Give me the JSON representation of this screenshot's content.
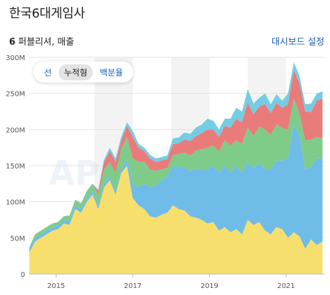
{
  "header": {
    "title": "한국6대게임사"
  },
  "subheader": {
    "count": "6",
    "text": " 퍼블리셔, 매출",
    "dashboard_link": "대시보드 설정"
  },
  "mode_toggle": {
    "options": [
      "선",
      "누적형",
      "백분율"
    ],
    "active_index": 1
  },
  "watermark_text": "APP",
  "chart_data": {
    "type": "area",
    "stacked": true,
    "title": "",
    "xlabel": "",
    "ylabel": "",
    "ylim": [
      0,
      300000000
    ],
    "yticks": [
      0,
      50000000,
      100000000,
      150000000,
      200000000,
      250000000,
      300000000
    ],
    "ytick_labels": [
      "0",
      "50M",
      "100M",
      "150M",
      "200M",
      "250M",
      "300M"
    ],
    "xticks": [
      2015,
      2017,
      2019,
      2021
    ],
    "xtick_labels": [
      "2015",
      "2017",
      "2019",
      "2021"
    ],
    "xlim": [
      2014.3,
      2022.0
    ],
    "shaded_years": [
      [
        2016.0,
        2017.0
      ],
      [
        2018.0,
        2019.0
      ],
      [
        2020.0,
        2021.0
      ]
    ],
    "x": [
      2014.3,
      2014.45,
      2014.6,
      2014.75,
      2014.9,
      2015.05,
      2015.2,
      2015.35,
      2015.5,
      2015.65,
      2015.8,
      2015.95,
      2016.1,
      2016.25,
      2016.4,
      2016.55,
      2016.7,
      2016.85,
      2017.0,
      2017.15,
      2017.3,
      2017.45,
      2017.6,
      2017.75,
      2017.9,
      2018.05,
      2018.2,
      2018.35,
      2018.5,
      2018.65,
      2018.8,
      2018.95,
      2019.1,
      2019.25,
      2019.4,
      2019.55,
      2019.7,
      2019.85,
      2020.0,
      2020.15,
      2020.3,
      2020.45,
      2020.6,
      2020.75,
      2020.9,
      2021.05,
      2021.2,
      2021.35,
      2021.5,
      2021.65,
      2021.8,
      2021.95
    ],
    "series": [
      {
        "color": "#f7df6e",
        "values": [
          30,
          45,
          50,
          55,
          60,
          62,
          70,
          68,
          90,
          85,
          100,
          110,
          90,
          120,
          130,
          110,
          140,
          150,
          105,
          95,
          90,
          80,
          78,
          82,
          85,
          95,
          90,
          88,
          80,
          78,
          75,
          70,
          72,
          60,
          65,
          58,
          62,
          55,
          75,
          68,
          72,
          60,
          55,
          65,
          62,
          50,
          58,
          52,
          35,
          48,
          40,
          45
        ]
      },
      {
        "color": "#6fbce8",
        "values": [
          5,
          5,
          5,
          5,
          5,
          5,
          5,
          5,
          5,
          5,
          5,
          5,
          5,
          5,
          5,
          5,
          5,
          10,
          20,
          25,
          35,
          40,
          45,
          48,
          50,
          55,
          58,
          60,
          62,
          68,
          70,
          75,
          78,
          80,
          85,
          82,
          88,
          85,
          80,
          78,
          82,
          85,
          90,
          92,
          95,
          110,
          150,
          140,
          110,
          100,
          120,
          115
        ]
      },
      {
        "color": "#7fcc8a",
        "values": [
          2,
          5,
          5,
          5,
          5,
          5,
          5,
          8,
          8,
          8,
          10,
          10,
          15,
          20,
          20,
          25,
          28,
          30,
          35,
          35,
          30,
          25,
          20,
          15,
          12,
          15,
          18,
          20,
          22,
          25,
          28,
          30,
          28,
          30,
          35,
          38,
          35,
          40,
          48,
          45,
          50,
          55,
          48,
          50,
          45,
          40,
          35,
          30,
          40,
          38,
          30,
          28
        ]
      },
      {
        "color": "#ea7b7b",
        "values": [
          0,
          0,
          0,
          0,
          0,
          0,
          0,
          0,
          0,
          0,
          0,
          0,
          5,
          10,
          15,
          15,
          12,
          15,
          30,
          20,
          15,
          15,
          12,
          12,
          12,
          15,
          15,
          18,
          20,
          20,
          22,
          25,
          22,
          20,
          20,
          25,
          30,
          30,
          35,
          30,
          28,
          35,
          30,
          30,
          28,
          35,
          40,
          42,
          40,
          38,
          50,
          55
        ]
      },
      {
        "color": "#74cde3",
        "values": [
          0,
          0,
          0,
          0,
          0,
          0,
          0,
          0,
          0,
          0,
          0,
          0,
          2,
          3,
          5,
          5,
          5,
          5,
          8,
          5,
          5,
          5,
          5,
          5,
          5,
          8,
          8,
          10,
          10,
          12,
          12,
          15,
          12,
          10,
          10,
          12,
          15,
          15,
          18,
          15,
          12,
          15,
          12,
          12,
          10,
          15,
          10,
          10,
          10,
          12,
          10,
          10
        ]
      }
    ],
    "value_unit": "M"
  }
}
